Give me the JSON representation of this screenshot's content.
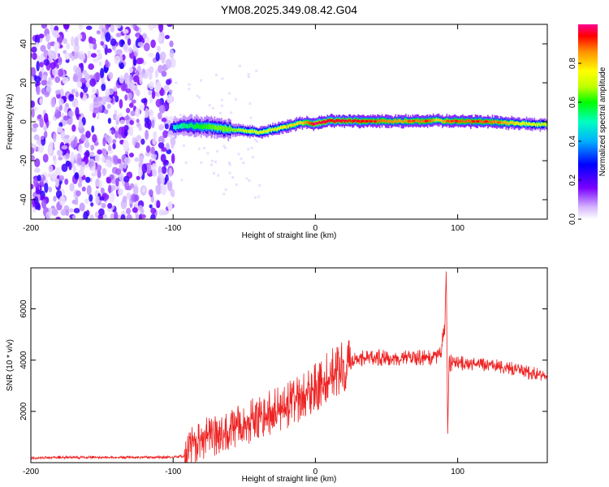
{
  "title": "YM08.2025.349.08.42.G04",
  "chart_data": [
    {
      "type": "heatmap",
      "xlabel": "Height of straight line (km)",
      "ylabel": "Frequency (Hz)",
      "xlim": [
        -200,
        163
      ],
      "ylim": [
        -50,
        50
      ],
      "xticks": [
        -200,
        -100,
        0,
        100
      ],
      "yticks": [
        -40,
        -20,
        0,
        20,
        40
      ],
      "colorbar": {
        "label": "Normalized spectral amplitude",
        "range": [
          0,
          1
        ],
        "ticks": [
          "0.0",
          "0.2",
          "0.4",
          "0.6",
          "0.8"
        ],
        "colors": [
          "#ffffff",
          "#c9a6ff",
          "#7a00ff",
          "#0000ff",
          "#00b0ff",
          "#00ffc0",
          "#00ff00",
          "#c0ff00",
          "#ffff00",
          "#ff9000",
          "#ff0000",
          "#ff0090"
        ]
      },
      "noise_region": [
        -200,
        -100
      ],
      "ridge": {
        "x": [
          -100,
          -90,
          -80,
          -70,
          -60,
          -50,
          -40,
          -30,
          -20,
          -10,
          0,
          10,
          20,
          40,
          60,
          80,
          85,
          90,
          100,
          120,
          140,
          163
        ],
        "y": [
          -3,
          -2,
          -2.5,
          -3,
          -4,
          -4.5,
          -5.5,
          -4,
          -2.5,
          -0.5,
          -1,
          0.5,
          0.5,
          0.2,
          0.3,
          0.4,
          1,
          0.3,
          0.3,
          0.1,
          -0.8,
          -1.6
        ],
        "amplitude": [
          0.45,
          0.5,
          0.55,
          0.6,
          0.6,
          0.65,
          0.7,
          0.7,
          0.75,
          0.75,
          0.95,
          0.9,
          0.9,
          0.85,
          0.8,
          0.85,
          0.75,
          0.8,
          0.85,
          0.85,
          0.75,
          0.65
        ]
      }
    },
    {
      "type": "line",
      "xlabel": "Height of straight line (km)",
      "ylabel": "SNR (10 * v/v)",
      "xlim": [
        -200,
        163
      ],
      "ylim": [
        0,
        7600
      ],
      "xticks": [
        -200,
        -100,
        0,
        100
      ],
      "yticks": [
        2000,
        4000,
        6000
      ],
      "color": "#ee2222",
      "series": [
        {
          "name": "SNR",
          "x": [
            -200,
            -180,
            -160,
            -140,
            -120,
            -100,
            -92,
            -88,
            -80,
            -70,
            -60,
            -50,
            -40,
            -30,
            -20,
            -10,
            0,
            10,
            20,
            30,
            40,
            50,
            60,
            70,
            80,
            88,
            91,
            92,
            93,
            94,
            95,
            97,
            100,
            110,
            120,
            130,
            140,
            150,
            163
          ],
          "y": [
            180,
            200,
            210,
            200,
            210,
            220,
            250,
            600,
            900,
            1100,
            1300,
            1500,
            1750,
            2000,
            2200,
            2500,
            2900,
            3400,
            3800,
            4050,
            4100,
            4100,
            4100,
            4100,
            4100,
            4200,
            5200,
            7600,
            1000,
            4200,
            3900,
            3950,
            3900,
            3850,
            3800,
            3750,
            3650,
            3500,
            3400
          ]
        }
      ]
    }
  ]
}
